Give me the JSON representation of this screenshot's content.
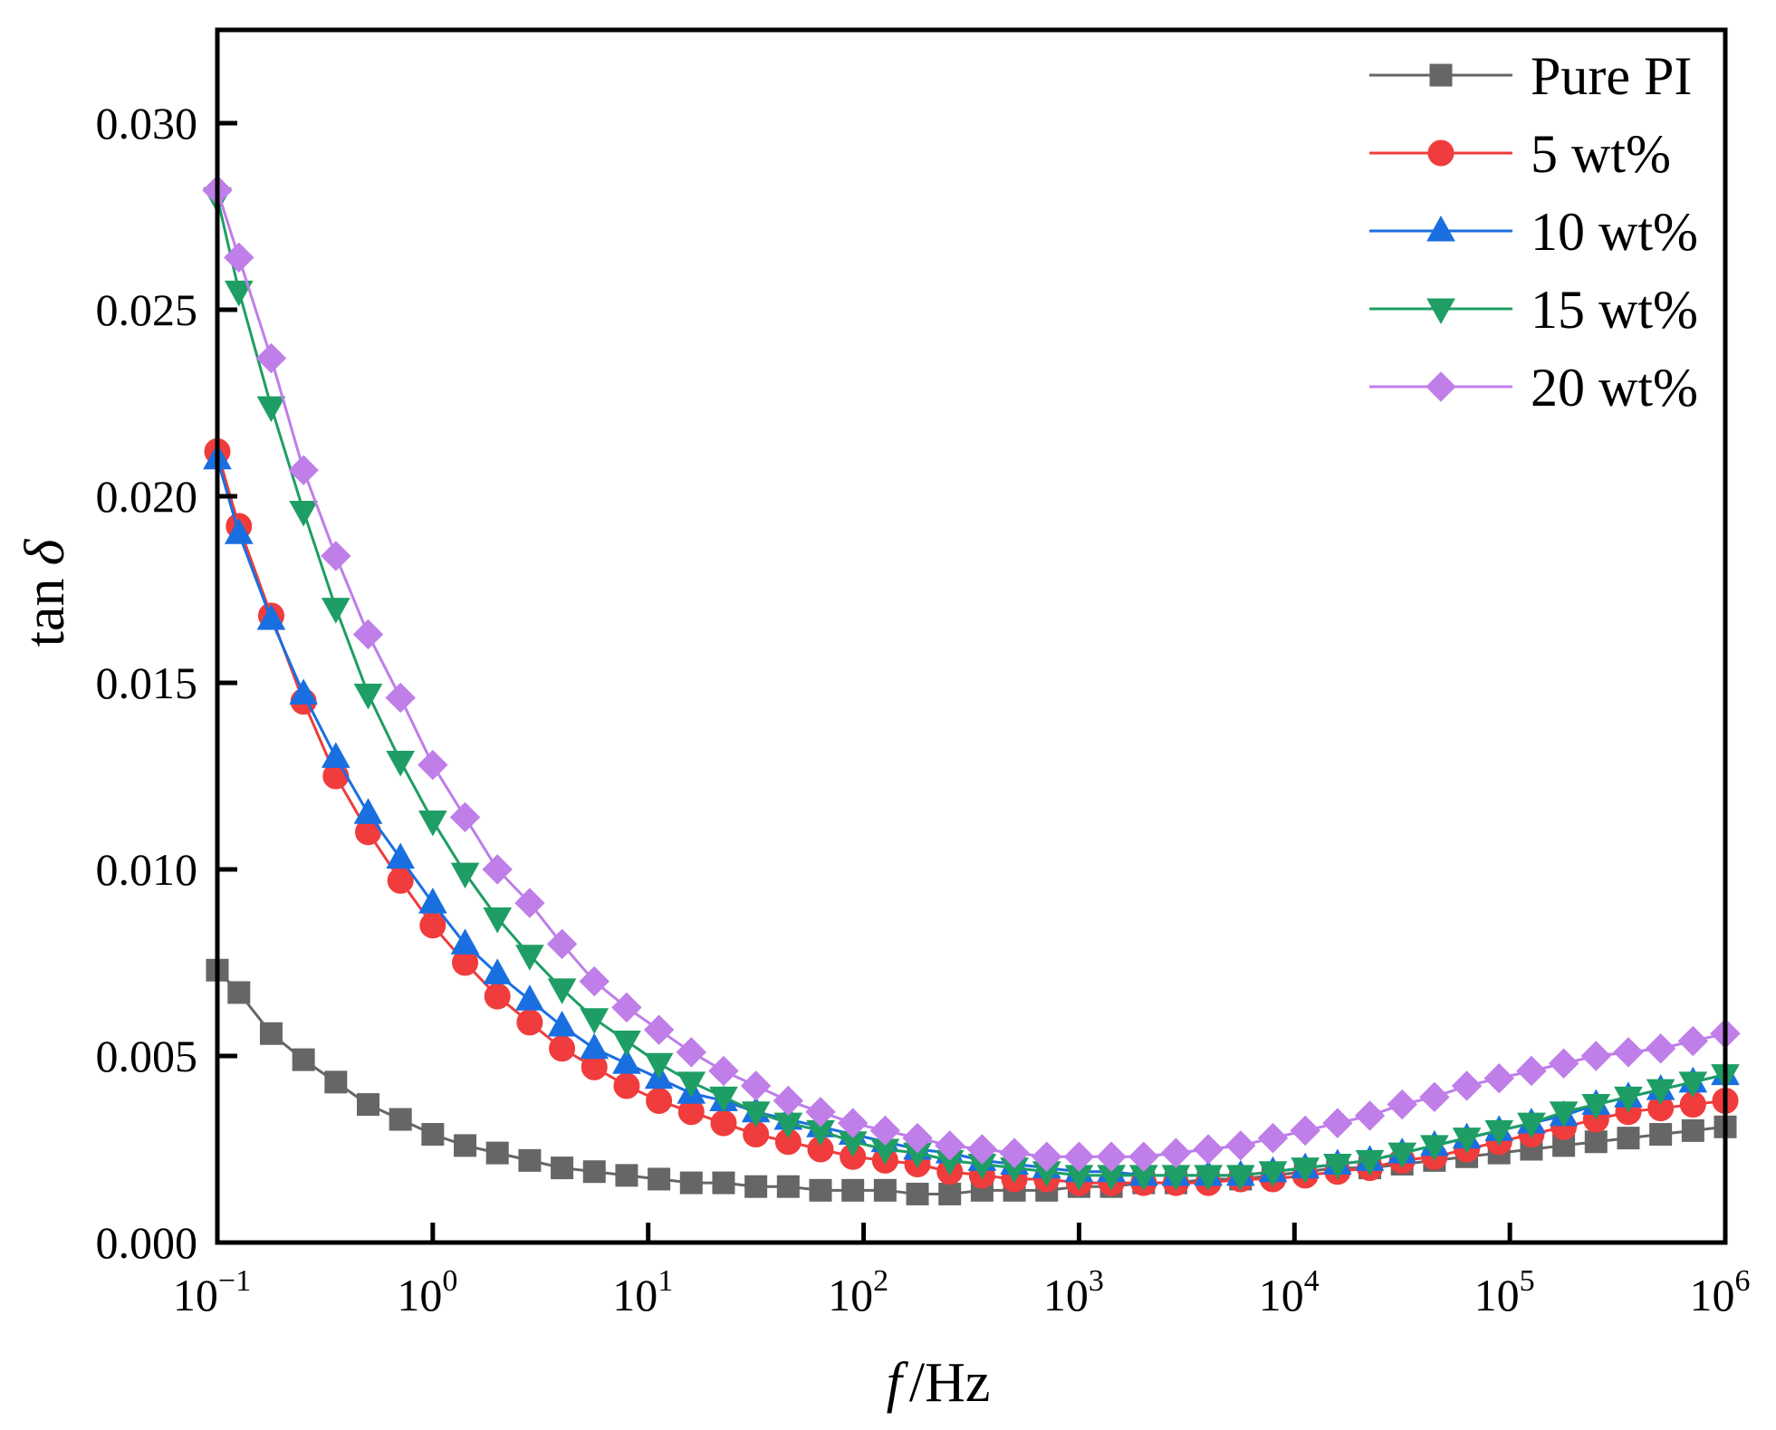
{
  "chart_data": {
    "type": "line",
    "title": "",
    "xlabel": "/Hz",
    "xlabel_italic": "f",
    "ylabel": "tan",
    "ylabel_italic": "δ",
    "xscale": "log",
    "xlim_log10": [
      -1,
      6
    ],
    "ylim": [
      0,
      0.0325
    ],
    "grid": false,
    "legend_position": "top-right",
    "x_ticks": [
      {
        "exp": -1,
        "base": "10",
        "sup": "−1"
      },
      {
        "exp": 0,
        "base": "10",
        "sup": "0"
      },
      {
        "exp": 1,
        "base": "10",
        "sup": "1"
      },
      {
        "exp": 2,
        "base": "10",
        "sup": "2"
      },
      {
        "exp": 3,
        "base": "10",
        "sup": "3"
      },
      {
        "exp": 4,
        "base": "10",
        "sup": "4"
      },
      {
        "exp": 5,
        "base": "10",
        "sup": "5"
      },
      {
        "exp": 6,
        "base": "10",
        "sup": "6"
      }
    ],
    "y_ticks": [
      {
        "value": 0.0,
        "label": "0.000"
      },
      {
        "value": 0.005,
        "label": "0.005"
      },
      {
        "value": 0.01,
        "label": "0.010"
      },
      {
        "value": 0.015,
        "label": "0.015"
      },
      {
        "value": 0.02,
        "label": "0.020"
      },
      {
        "value": 0.025,
        "label": "0.025"
      },
      {
        "value": 0.03,
        "label": "0.030"
      }
    ],
    "x_log10": [
      -1.0,
      -0.9,
      -0.75,
      -0.6,
      -0.45,
      -0.3,
      -0.15,
      0.0,
      0.15,
      0.3,
      0.45,
      0.6,
      0.75,
      0.9,
      1.05,
      1.2,
      1.35,
      1.5,
      1.65,
      1.8,
      1.95,
      2.1,
      2.25,
      2.4,
      2.55,
      2.7,
      2.85,
      3.0,
      3.15,
      3.3,
      3.45,
      3.6,
      3.75,
      3.9,
      4.05,
      4.2,
      4.35,
      4.5,
      4.65,
      4.8,
      4.95,
      5.1,
      5.25,
      5.4,
      5.55,
      5.7,
      5.85,
      6.0
    ],
    "series": [
      {
        "name": "Pure PI",
        "color": "#666666",
        "marker": "square",
        "values": [
          0.0073,
          0.0067,
          0.0056,
          0.0049,
          0.0043,
          0.0037,
          0.0033,
          0.0029,
          0.0026,
          0.0024,
          0.0022,
          0.002,
          0.0019,
          0.0018,
          0.0017,
          0.0016,
          0.0016,
          0.0015,
          0.0015,
          0.0014,
          0.0014,
          0.0014,
          0.0013,
          0.0013,
          0.0014,
          0.0014,
          0.0014,
          0.0015,
          0.0015,
          0.0016,
          0.0016,
          0.0017,
          0.0017,
          0.0018,
          0.0019,
          0.002,
          0.002,
          0.0021,
          0.0022,
          0.0023,
          0.0024,
          0.0025,
          0.0026,
          0.0027,
          0.0028,
          0.0029,
          0.003,
          0.0031
        ]
      },
      {
        "name": "5  wt%",
        "color": "#f03c3c",
        "marker": "circle",
        "values": [
          0.0212,
          0.0192,
          0.0168,
          0.0145,
          0.0125,
          0.011,
          0.0097,
          0.0085,
          0.0075,
          0.0066,
          0.0059,
          0.0052,
          0.0047,
          0.0042,
          0.0038,
          0.0035,
          0.0032,
          0.0029,
          0.0027,
          0.0025,
          0.0023,
          0.0022,
          0.0021,
          0.0019,
          0.0018,
          0.0017,
          0.0017,
          0.0016,
          0.0016,
          0.0016,
          0.0016,
          0.0016,
          0.0017,
          0.0017,
          0.0018,
          0.0019,
          0.002,
          0.0022,
          0.0023,
          0.0025,
          0.0027,
          0.0029,
          0.0031,
          0.0033,
          0.0035,
          0.0036,
          0.0037,
          0.0038
        ]
      },
      {
        "name": "10 wt%",
        "color": "#1a6fe0",
        "marker": "triangle-up",
        "values": [
          0.021,
          0.019,
          0.0167,
          0.0147,
          0.013,
          0.0115,
          0.0103,
          0.0091,
          0.008,
          0.0072,
          0.0065,
          0.0058,
          0.0052,
          0.0048,
          0.0044,
          0.004,
          0.0038,
          0.0035,
          0.0033,
          0.0031,
          0.0029,
          0.0027,
          0.0025,
          0.0024,
          0.0022,
          0.0021,
          0.002,
          0.0019,
          0.0019,
          0.0018,
          0.0018,
          0.0018,
          0.0018,
          0.0019,
          0.002,
          0.0021,
          0.0022,
          0.0024,
          0.0026,
          0.0028,
          0.003,
          0.0032,
          0.0034,
          0.0037,
          0.0039,
          0.0041,
          0.0043,
          0.0045
        ]
      },
      {
        "name": "15 wt%",
        "color": "#1e9e64",
        "marker": "triangle-down",
        "values": [
          0.028,
          0.0255,
          0.0224,
          0.0196,
          0.017,
          0.0147,
          0.0129,
          0.0113,
          0.0099,
          0.0087,
          0.0077,
          0.0068,
          0.006,
          0.0054,
          0.0048,
          0.0043,
          0.0039,
          0.0035,
          0.0032,
          0.003,
          0.0027,
          0.0025,
          0.0024,
          0.0022,
          0.0021,
          0.002,
          0.0019,
          0.0018,
          0.0018,
          0.0018,
          0.0018,
          0.0018,
          0.0018,
          0.0019,
          0.002,
          0.0021,
          0.0022,
          0.0024,
          0.0026,
          0.0028,
          0.003,
          0.0032,
          0.0035,
          0.0037,
          0.0039,
          0.0041,
          0.0043,
          0.0045
        ]
      },
      {
        "name": "20 wt%",
        "color": "#bf7ee8",
        "marker": "diamond",
        "values": [
          0.0282,
          0.0264,
          0.0237,
          0.0207,
          0.0184,
          0.0163,
          0.0146,
          0.0128,
          0.0114,
          0.01,
          0.0091,
          0.008,
          0.007,
          0.0063,
          0.0057,
          0.0051,
          0.0046,
          0.0042,
          0.0038,
          0.0035,
          0.0032,
          0.003,
          0.0028,
          0.0026,
          0.0025,
          0.0024,
          0.0023,
          0.0023,
          0.0023,
          0.0023,
          0.0024,
          0.0025,
          0.0026,
          0.0028,
          0.003,
          0.0032,
          0.0034,
          0.0037,
          0.0039,
          0.0042,
          0.0044,
          0.0046,
          0.0048,
          0.005,
          0.0051,
          0.0052,
          0.0054,
          0.0056
        ]
      }
    ]
  }
}
